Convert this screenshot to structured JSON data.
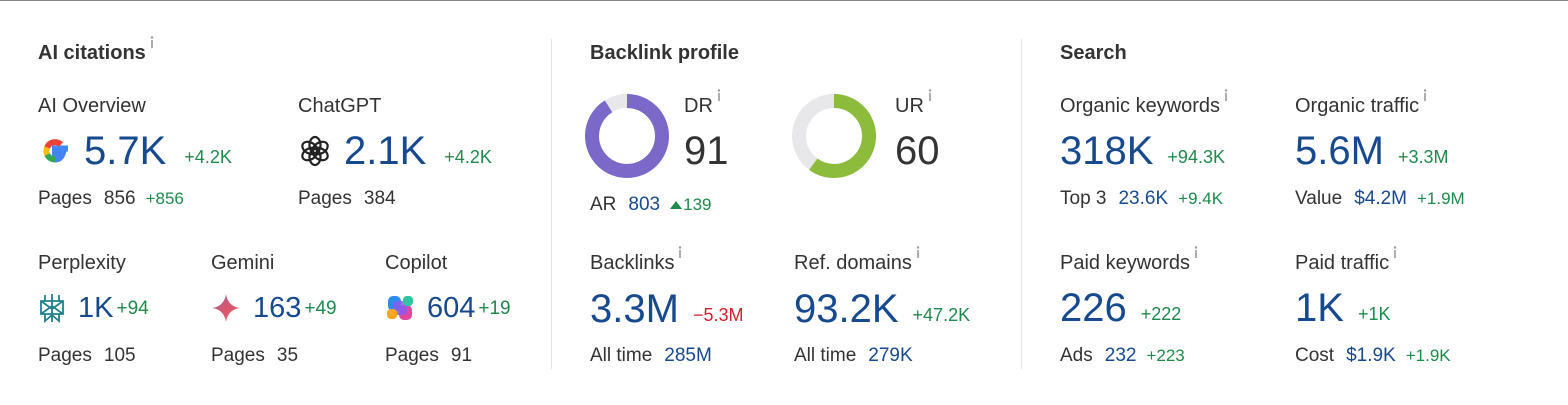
{
  "ai_citations": {
    "title": "AI citations",
    "items": [
      {
        "name": "AI Overview",
        "value": "5.7K",
        "change": "+4.2K",
        "pages_label": "Pages",
        "pages": "856",
        "pages_change": "+856"
      },
      {
        "name": "ChatGPT",
        "value": "2.1K",
        "change": "+4.2K",
        "pages_label": "Pages",
        "pages": "384"
      },
      {
        "name": "Perplexity",
        "value": "1K",
        "change": "+94",
        "pages_label": "Pages",
        "pages": "105"
      },
      {
        "name": "Gemini",
        "value": "163",
        "change": "+49",
        "pages_label": "Pages",
        "pages": "35"
      },
      {
        "name": "Copilot",
        "value": "604",
        "change": "+19",
        "pages_label": "Pages",
        "pages": "91"
      }
    ]
  },
  "backlink_profile": {
    "title": "Backlink profile",
    "dr": {
      "label": "DR",
      "value": 91,
      "range": [
        0,
        100
      ],
      "color": "#7b68c9"
    },
    "ur": {
      "label": "UR",
      "value": 60,
      "range": [
        0,
        100
      ],
      "color": "#8dbb3c"
    },
    "ar": {
      "label": "AR",
      "value": "803",
      "change": "139"
    },
    "backlinks": {
      "label": "Backlinks",
      "value": "3.3M",
      "change": "−5.3M",
      "sub_label": "All time",
      "sub_value": "285M"
    },
    "ref_domains": {
      "label": "Ref. domains",
      "value": "93.2K",
      "change": "+47.2K",
      "sub_label": "All time",
      "sub_value": "279K"
    }
  },
  "search": {
    "title": "Search",
    "items": [
      {
        "label": "Organic keywords",
        "value": "318K",
        "change": "+94.3K",
        "sub_label": "Top 3",
        "sub_value": "23.6K",
        "sub_change": "+9.4K"
      },
      {
        "label": "Organic traffic",
        "value": "5.6M",
        "change": "+3.3M",
        "sub_label": "Value",
        "sub_value": "$4.2M",
        "sub_change": "+1.9M"
      },
      {
        "label": "Paid keywords",
        "value": "226",
        "change": "+222",
        "sub_label": "Ads",
        "sub_value": "232",
        "sub_change": "+223"
      },
      {
        "label": "Paid traffic",
        "value": "1K",
        "change": "+1K",
        "sub_label": "Cost",
        "sub_value": "$1.9K",
        "sub_change": "+1.9K"
      }
    ]
  }
}
